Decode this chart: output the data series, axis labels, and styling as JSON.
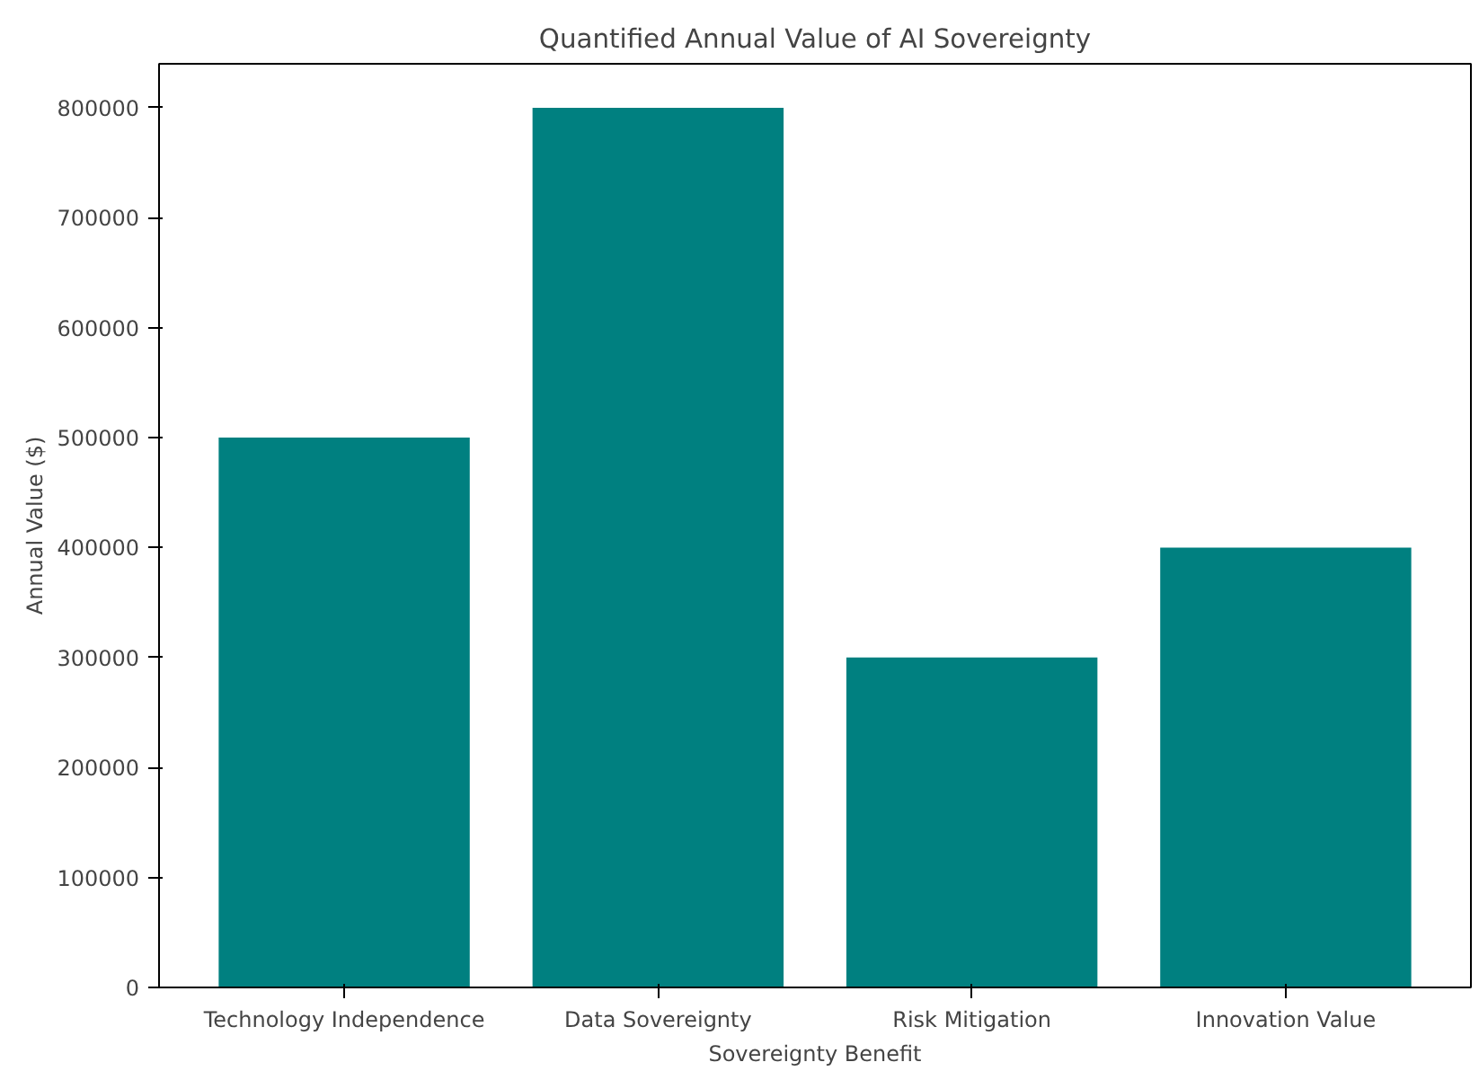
{
  "chart_data": {
    "type": "bar",
    "title": "Quantified Annual Value of AI Sovereignty",
    "xlabel": "Sovereignty Benefit",
    "ylabel": "Annual Value ($)",
    "categories": [
      "Technology Independence",
      "Data Sovereignty",
      "Risk Mitigation",
      "Innovation Value"
    ],
    "values": [
      500000,
      800000,
      300000,
      400000
    ],
    "color": "#008080",
    "ylim": [
      0,
      840000
    ],
    "yticks": [
      0,
      100000,
      200000,
      300000,
      400000,
      500000,
      600000,
      700000,
      800000
    ],
    "grid": false
  }
}
